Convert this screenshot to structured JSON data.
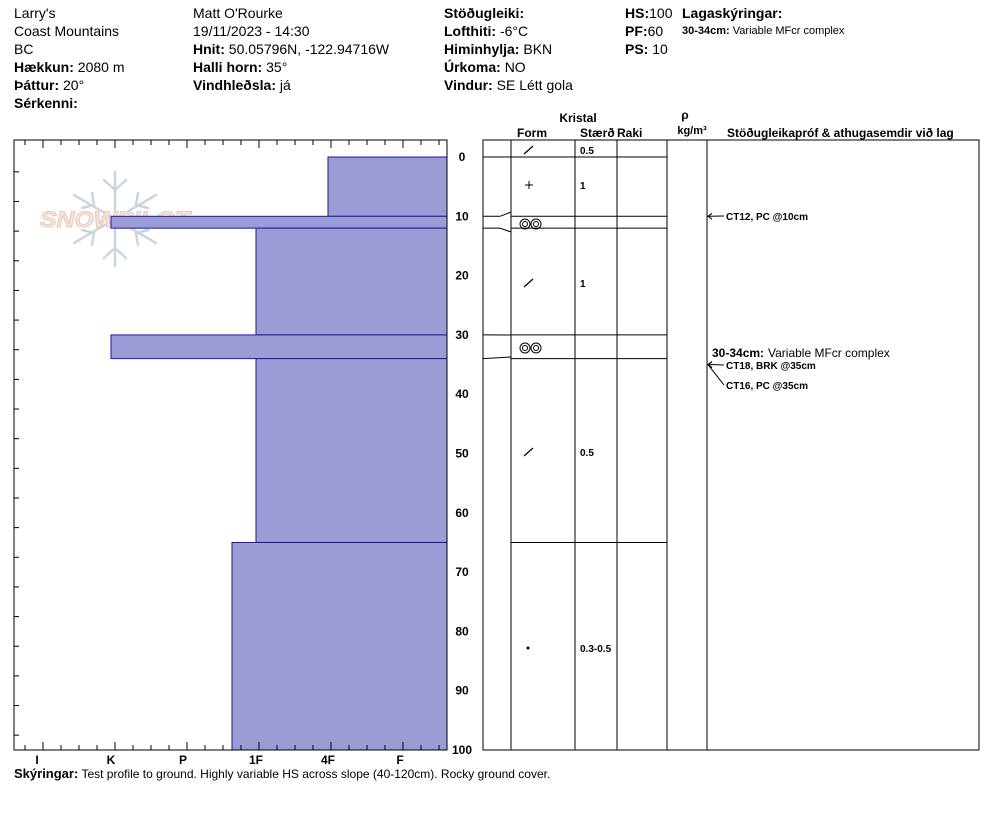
{
  "header": {
    "location_name": "Larry's",
    "range": "Coast Mountains",
    "state": "BC",
    "elevation_label": "Hækkun:",
    "elevation_value": "2080 m",
    "aspect_label": "Þáttur:",
    "aspect_value": "20°",
    "features_label": "Sérkenni:",
    "observer": "Matt O'Rourke",
    "datetime": "19/11/2023 - 14:30",
    "coords_label": "Hnit:",
    "coords_value": "50.05796N, -122.94716W",
    "slope_label": "Halli horn:",
    "slope_value": "35°",
    "wind_loading_label": "Vindhleðsla:",
    "wind_loading_value": "já",
    "stability_label": "Stöðugleiki:",
    "air_temp_label": "Lofthiti:",
    "air_temp_value": "-6°C",
    "sky_label": "Himinhylja:",
    "sky_value": "BKN",
    "precip_label": "Úrkoma:",
    "precip_value": "NO",
    "wind_label": "Vindur:",
    "wind_value": "SE Létt gola",
    "hs_label": "HS:",
    "hs_value": "100",
    "pf_label": "PF:",
    "pf_value": "60",
    "ps_label": "PS:",
    "ps_value": "10",
    "layer_notes_label": "Lagaskýringar:",
    "layer_note_range": "30-34cm:",
    "layer_note_text": "Variable MFcr complex"
  },
  "logo_text": "SNOWPILOT",
  "columns": {
    "crystal": "Kristal",
    "form": "Form",
    "size": "Stærð",
    "moisture": "Raki",
    "rho": "ρ",
    "density_unit": "kg/m³",
    "tests": "Stöðugleikapróf & athugasemdir við lag"
  },
  "footer": {
    "label": "Skýringar:",
    "text": "Test profile to ground. Highly variable HS across slope (40-120cm). Rocky ground cover."
  },
  "colors": {
    "hardness_fill": "#9b9bd6",
    "hardness_stroke": "#1a1aa6"
  },
  "chart_data": {
    "type": "bar",
    "orientation": "horizontal",
    "x_axis": "hand hardness",
    "hardness_scale": [
      "I",
      "K",
      "P",
      "1F",
      "4F",
      "F"
    ],
    "depth_ticks": [
      "0",
      "10",
      "20",
      "30",
      "40",
      "50",
      "60",
      "70",
      "80",
      "90",
      "100"
    ],
    "depth_range_cm": [
      0,
      100
    ],
    "hardness_profile": [
      {
        "top_cm": 0,
        "bottom_cm": 10,
        "hardness": "4F"
      },
      {
        "top_cm": 10,
        "bottom_cm": 12,
        "hardness": "K"
      },
      {
        "top_cm": 12,
        "bottom_cm": 30,
        "hardness": "1F"
      },
      {
        "top_cm": 30,
        "bottom_cm": 34,
        "hardness": "K"
      },
      {
        "top_cm": 34,
        "bottom_cm": 65,
        "hardness": "1F"
      },
      {
        "top_cm": 65,
        "bottom_cm": 100,
        "hardness": "1F-"
      }
    ],
    "layer_boundaries_cm": [
      0,
      10,
      12,
      30,
      34,
      65,
      100
    ],
    "layers": [
      {
        "depth_cm": 0,
        "form_icon": "decomposing-fragment",
        "size": "0.5"
      },
      {
        "depth_cm": 5,
        "form_icon": "new-snow",
        "size": "1"
      },
      {
        "depth_cm": 11,
        "form_icon": "melt-freeze-crust",
        "size": ""
      },
      {
        "depth_cm": 21,
        "form_icon": "decomposing-fragment",
        "size": "1"
      },
      {
        "depth_cm": 32,
        "form_icon": "melt-freeze-crust",
        "size": ""
      },
      {
        "depth_cm": 50,
        "form_icon": "decomposing-fragment",
        "size": "0.5"
      },
      {
        "depth_cm": 82,
        "form_icon": "rounded-grain",
        "size": "0.3-0.5"
      }
    ],
    "tests": [
      {
        "depth_cm": 10,
        "text": "CT12, PC @10cm"
      },
      {
        "depth_cm": 35,
        "text": "CT18, BRK @35cm"
      },
      {
        "depth_cm": 35,
        "text": "CT16, PC @35cm"
      }
    ],
    "comments": [
      {
        "range": "30-34cm:",
        "text": "Variable MFcr complex"
      }
    ]
  }
}
